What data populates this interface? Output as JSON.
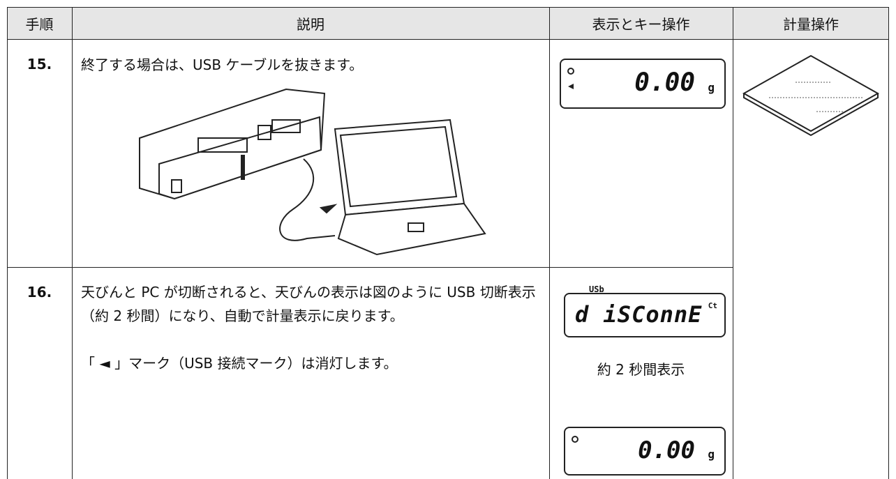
{
  "header": {
    "step": "手順",
    "description": "説明",
    "display": "表示とキー操作",
    "operation": "計量操作"
  },
  "rows": [
    {
      "step": "15.",
      "description": [
        "終了する場合は、USB ケーブルを抜きます。"
      ],
      "display": {
        "value": "0.00",
        "unit": "g"
      }
    },
    {
      "step": "16.",
      "description": [
        "天びんと PC が切断されると、天びんの表示は図のように USB 切断表示（約 2 秒間）になり、自動で計量表示に戻ります。",
        "「 ◄ 」マーク（USB 接続マーク）は消灯します。"
      ],
      "display": {
        "indicator": "USb",
        "message": "d iSConnE",
        "suffix": "Ct",
        "caption": "約 2 秒間表示",
        "value": "0.00",
        "unit": "g"
      }
    }
  ]
}
